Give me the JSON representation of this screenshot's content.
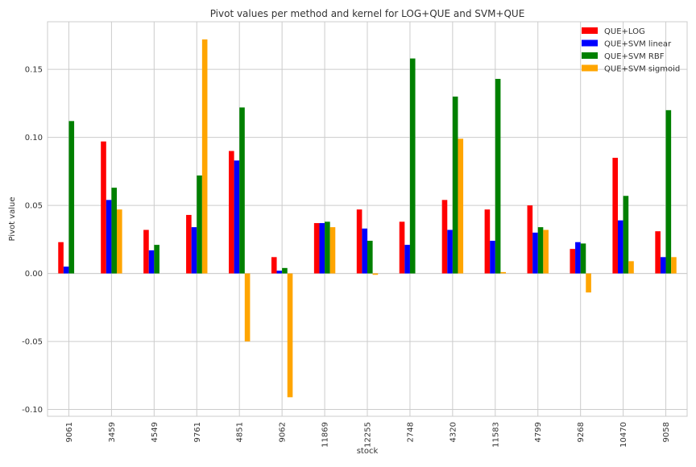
{
  "chart_data": {
    "type": "bar",
    "title": "Pivot values per method and kernel for LOG+QUE and SVM+QUE",
    "xlabel": "stock",
    "ylabel": "Pivot value",
    "ylim": [
      -0.105,
      0.185
    ],
    "yticks": [
      -0.1,
      -0.05,
      0.0,
      0.05,
      0.1,
      0.15
    ],
    "grid": true,
    "legend_position": "top-right",
    "categories": [
      "9061",
      "3459",
      "4549",
      "9761",
      "4851",
      "9062",
      "11869",
      "12255",
      "2748",
      "4320",
      "11583",
      "4799",
      "9268",
      "10470",
      "9058"
    ],
    "series": [
      {
        "name": "QUE+LOG",
        "color": "#ff0000",
        "values": [
          0.023,
          0.097,
          0.032,
          0.043,
          0.09,
          0.012,
          0.037,
          0.047,
          0.038,
          0.054,
          0.047,
          0.05,
          0.018,
          0.085,
          0.031
        ]
      },
      {
        "name": "QUE+SVM linear",
        "color": "#0000ff",
        "values": [
          0.005,
          0.054,
          0.017,
          0.034,
          0.083,
          0.002,
          0.037,
          0.033,
          0.021,
          0.032,
          0.024,
          0.03,
          0.023,
          0.039,
          0.012
        ]
      },
      {
        "name": "QUE+SVM RBF",
        "color": "#008000",
        "values": [
          0.112,
          0.063,
          0.021,
          0.072,
          0.122,
          0.004,
          0.038,
          0.024,
          0.158,
          0.13,
          0.143,
          0.034,
          0.022,
          0.057,
          0.12
        ]
      },
      {
        "name": "QUE+SVM sigmoid",
        "color": "#ffa500",
        "values": [
          0.0,
          0.047,
          0.0,
          0.172,
          -0.05,
          -0.091,
          0.034,
          -0.001,
          0.0,
          0.099,
          0.001,
          0.032,
          -0.014,
          0.009,
          0.012
        ]
      }
    ]
  }
}
